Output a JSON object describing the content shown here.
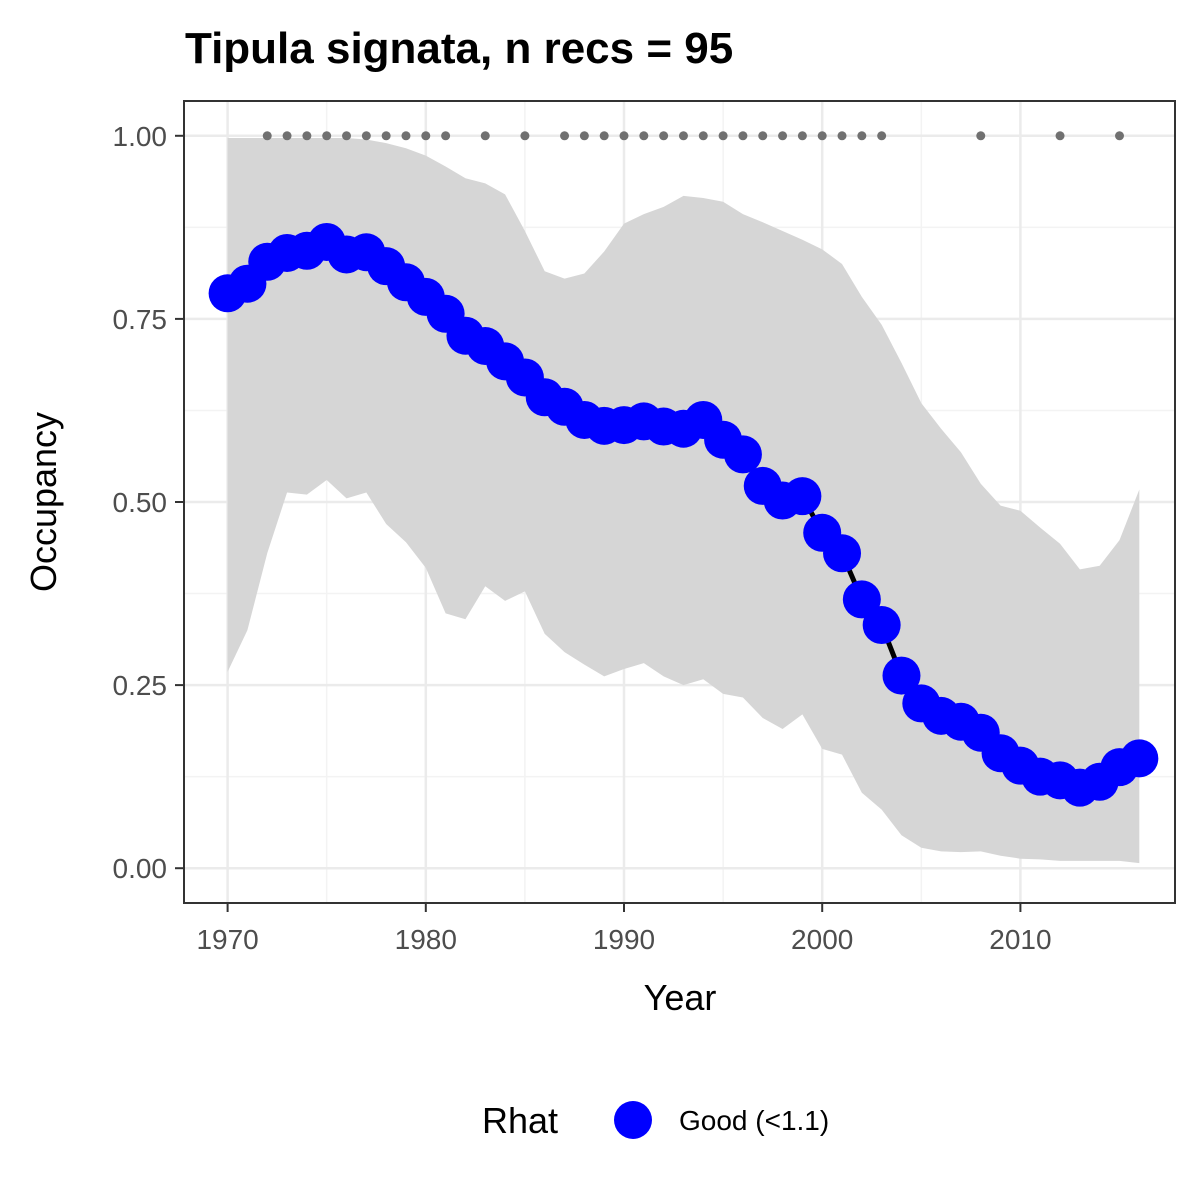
{
  "chart_data": {
    "type": "line",
    "title": "Tipula signata, n recs = 95",
    "xlabel": "Year",
    "ylabel": "Occupancy",
    "xlim": [
      1967.8,
      2017.8
    ],
    "ylim": [
      -0.0475,
      1.0475
    ],
    "x_ticks": [
      1970,
      1980,
      1990,
      2000,
      2010
    ],
    "x_tick_labels": [
      "1970",
      "1980",
      "1990",
      "2000",
      "2010"
    ],
    "y_ticks": [
      0,
      0.25,
      0.5,
      0.75,
      1.0
    ],
    "y_tick_labels": [
      "0.00",
      "0.25",
      "0.50",
      "0.75",
      "1.00"
    ],
    "grid": true,
    "legend": {
      "title": "Rhat",
      "position": "bottom",
      "entries": [
        {
          "label": "Good (<1.1)",
          "color": "#0000ff"
        }
      ]
    },
    "colors": {
      "points": "#0000ff",
      "line": "#000000",
      "ribbon": "#d6d6d6",
      "records": "#707070",
      "panel_border": "#333333",
      "grid_major": "#ebebeb",
      "grid_minor": "#f3f3f3"
    },
    "series": [
      {
        "name": "Good (<1.1)",
        "x": [
          1970,
          1971,
          1972,
          1973,
          1974,
          1975,
          1976,
          1977,
          1978,
          1979,
          1980,
          1981,
          1982,
          1983,
          1984,
          1985,
          1986,
          1987,
          1988,
          1989,
          1990,
          1991,
          1992,
          1993,
          1994,
          1995,
          1996,
          1997,
          1998,
          1999,
          2000,
          2001,
          2002,
          2003,
          2004,
          2005,
          2006,
          2007,
          2008,
          2009,
          2010,
          2011,
          2012,
          2013,
          2014,
          2015,
          2016
        ],
        "y": [
          0.785,
          0.798,
          0.828,
          0.84,
          0.843,
          0.855,
          0.838,
          0.841,
          0.822,
          0.8,
          0.78,
          0.757,
          0.727,
          0.713,
          0.692,
          0.67,
          0.643,
          0.63,
          0.612,
          0.604,
          0.605,
          0.61,
          0.603,
          0.6,
          0.612,
          0.585,
          0.565,
          0.522,
          0.502,
          0.508,
          0.458,
          0.43,
          0.367,
          0.332,
          0.263,
          0.225,
          0.208,
          0.2,
          0.185,
          0.157,
          0.14,
          0.125,
          0.12,
          0.11,
          0.118,
          0.138,
          0.15
        ]
      }
    ],
    "ribbon": {
      "x": [
        1970,
        1971,
        1972,
        1973,
        1974,
        1975,
        1976,
        1977,
        1978,
        1979,
        1980,
        1981,
        1982,
        1983,
        1984,
        1985,
        1986,
        1987,
        1988,
        1989,
        1990,
        1991,
        1992,
        1993,
        1994,
        1995,
        1996,
        1997,
        1998,
        1999,
        2000,
        2001,
        2002,
        2003,
        2004,
        2005,
        2006,
        2007,
        2008,
        2009,
        2010,
        2011,
        2012,
        2013,
        2014,
        2015,
        2016
      ],
      "lower": [
        0.268,
        0.325,
        0.43,
        0.513,
        0.51,
        0.53,
        0.505,
        0.513,
        0.47,
        0.445,
        0.41,
        0.348,
        0.34,
        0.385,
        0.365,
        0.378,
        0.32,
        0.295,
        0.278,
        0.262,
        0.272,
        0.28,
        0.262,
        0.25,
        0.258,
        0.238,
        0.233,
        0.205,
        0.19,
        0.21,
        0.163,
        0.155,
        0.103,
        0.08,
        0.045,
        0.028,
        0.023,
        0.022,
        0.023,
        0.017,
        0.013,
        0.012,
        0.01,
        0.01,
        0.01,
        0.01,
        0.007
      ],
      "upper": [
        0.997,
        0.997,
        0.997,
        0.997,
        0.997,
        0.997,
        0.997,
        0.995,
        0.99,
        0.983,
        0.973,
        0.958,
        0.942,
        0.935,
        0.92,
        0.87,
        0.815,
        0.805,
        0.812,
        0.842,
        0.88,
        0.893,
        0.903,
        0.918,
        0.915,
        0.91,
        0.893,
        0.882,
        0.87,
        0.858,
        0.845,
        0.825,
        0.78,
        0.742,
        0.69,
        0.635,
        0.6,
        0.568,
        0.525,
        0.495,
        0.488,
        0.465,
        0.443,
        0.408,
        0.413,
        0.448,
        0.517
      ]
    },
    "records": {
      "x": [
        1972,
        1973,
        1974,
        1975,
        1976,
        1977,
        1978,
        1979,
        1980,
        1981,
        1983,
        1985,
        1987,
        1988,
        1989,
        1990,
        1991,
        1992,
        1993,
        1994,
        1995,
        1996,
        1997,
        1998,
        1999,
        2000,
        2001,
        2002,
        2003,
        2008,
        2012,
        2015
      ],
      "y": 1.0
    }
  }
}
